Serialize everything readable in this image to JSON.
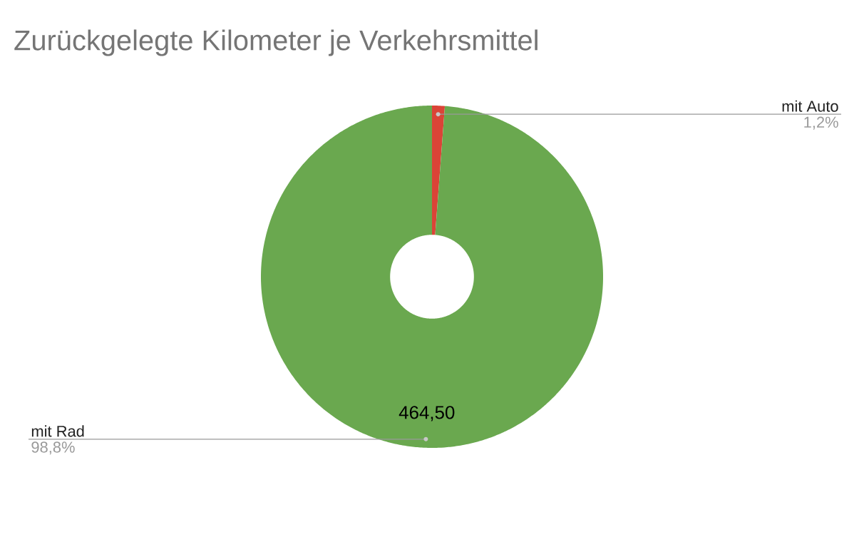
{
  "chart_data": {
    "type": "donut",
    "title": "Zurückgelegte Kilometer je Verkehrsmittel",
    "categories": [
      "mit Auto",
      "mit Rad"
    ],
    "values": [
      1.2,
      98.8
    ],
    "colors": [
      "#db4437",
      "#6aa84f"
    ],
    "value_labels": [
      "1,2%",
      "98,8%"
    ],
    "annotations": [
      {
        "text": "464,50",
        "x": "mit Rad"
      }
    ],
    "legend": false
  }
}
